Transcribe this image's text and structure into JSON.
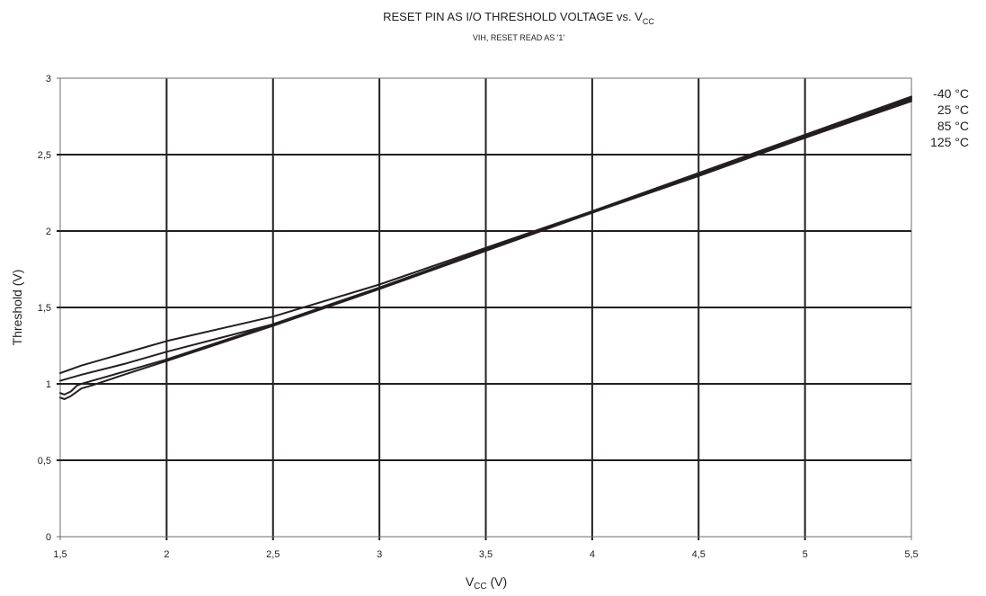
{
  "chart_data": {
    "type": "line",
    "title": "RESET PIN AS I/O THRESHOLD VOLTAGE vs. V",
    "title_sub": "CC",
    "subtitle": "VIH, RESET READ AS '1'",
    "xlabel": "V",
    "xlabel_sub": "CC",
    "xlabel_unit": " (V)",
    "ylabel": "Threshold (V)",
    "xlim": [
      1.5,
      5.5
    ],
    "ylim": [
      0,
      3
    ],
    "x_ticks": [
      1.5,
      2,
      2.5,
      3,
      3.5,
      4,
      4.5,
      5,
      5.5
    ],
    "x_tick_labels": [
      "1,5",
      "2",
      "2,5",
      "3",
      "3,5",
      "4",
      "4,5",
      "5",
      "5,5"
    ],
    "y_ticks": [
      0,
      0.5,
      1,
      1.5,
      2,
      2.5,
      3
    ],
    "y_tick_labels": [
      "0",
      "0,5",
      "1",
      "1,5",
      "2",
      "2,5",
      "3"
    ],
    "grid": true,
    "legend_position": "right",
    "line_color": "#231f20",
    "series": [
      {
        "name": "-40 °C",
        "x": [
          1.5,
          1.6,
          1.8,
          2.0,
          2.5,
          3.0,
          3.5,
          4.0,
          4.5,
          5.0,
          5.5
        ],
        "y": [
          1.07,
          1.12,
          1.2,
          1.28,
          1.44,
          1.65,
          1.89,
          2.13,
          2.38,
          2.63,
          2.88
        ]
      },
      {
        "name": "25 °C",
        "x": [
          1.5,
          1.6,
          1.8,
          2.0,
          2.5,
          3.0,
          3.5,
          4.0,
          4.5,
          5.0,
          5.5
        ],
        "y": [
          1.02,
          1.06,
          1.13,
          1.21,
          1.39,
          1.63,
          1.88,
          2.12,
          2.37,
          2.62,
          2.87
        ]
      },
      {
        "name": "85 °C",
        "x": [
          1.5,
          1.52,
          1.55,
          1.58,
          1.6,
          1.65,
          1.8,
          2.0,
          2.5,
          3.0,
          3.5,
          4.0,
          4.5,
          5.0,
          5.5
        ],
        "y": [
          0.94,
          0.93,
          0.95,
          0.99,
          1.0,
          1.02,
          1.08,
          1.16,
          1.39,
          1.63,
          1.88,
          2.12,
          2.37,
          2.61,
          2.86
        ]
      },
      {
        "name": "125 °C",
        "x": [
          1.5,
          1.52,
          1.55,
          1.58,
          1.6,
          1.65,
          1.8,
          2.0,
          2.5,
          3.0,
          3.5,
          4.0,
          4.5,
          5.0,
          5.5
        ],
        "y": [
          0.91,
          0.9,
          0.92,
          0.95,
          0.97,
          0.99,
          1.06,
          1.15,
          1.38,
          1.62,
          1.87,
          2.12,
          2.36,
          2.61,
          2.85
        ]
      }
    ]
  }
}
